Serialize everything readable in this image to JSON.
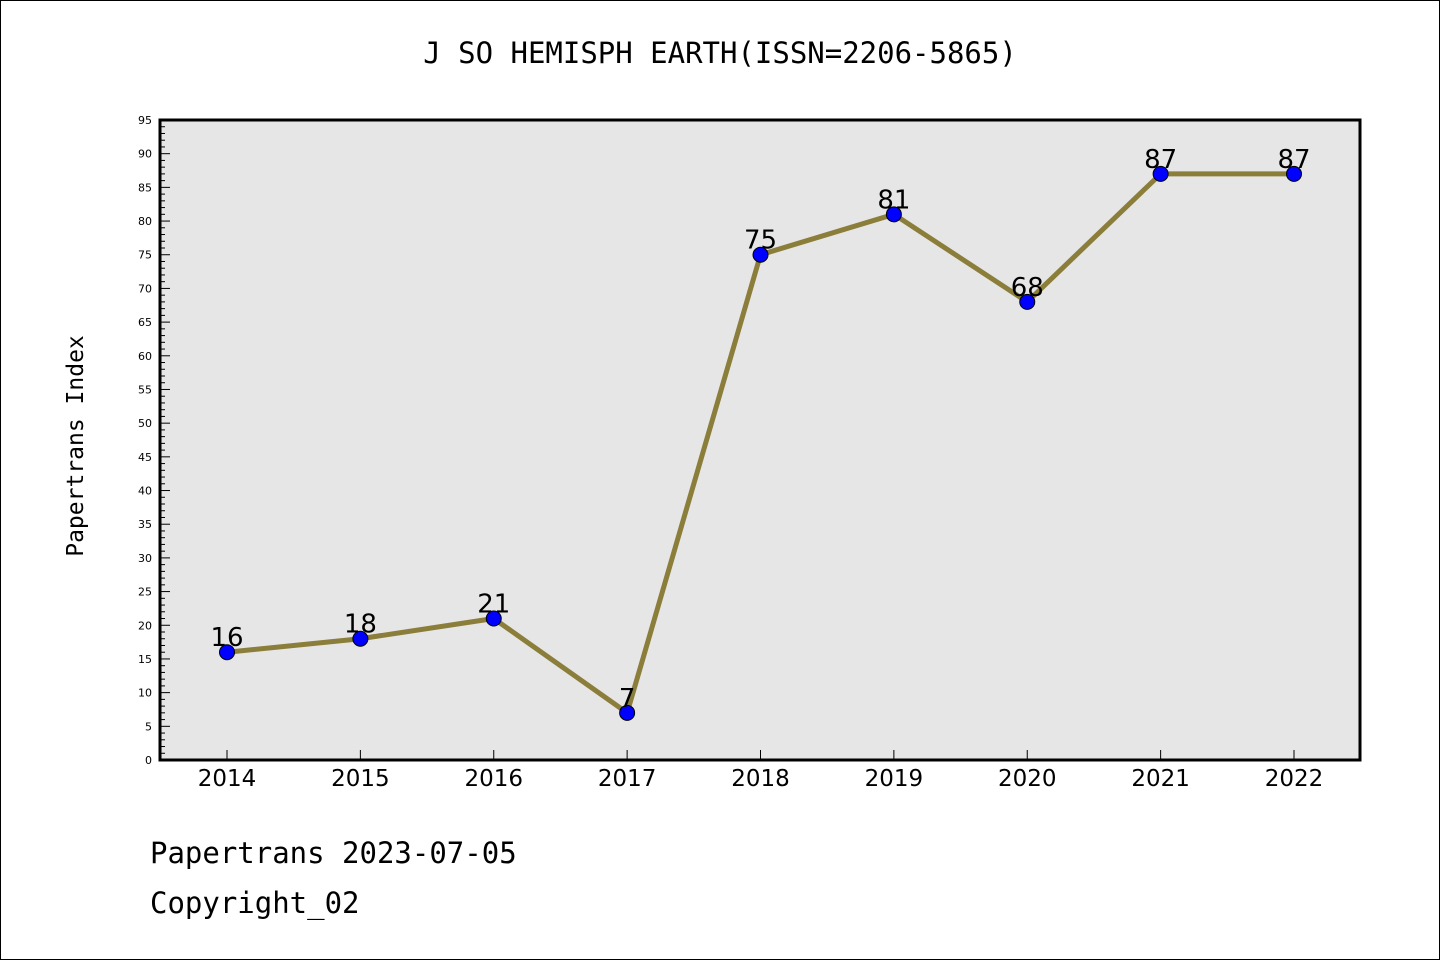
{
  "chart_data": {
    "type": "line",
    "title": "J SO HEMISPH EARTH(ISSN=2206-5865)",
    "xlabel": "",
    "ylabel": "Papertrans Index",
    "categories": [
      "2014",
      "2015",
      "2016",
      "2017",
      "2018",
      "2019",
      "2020",
      "2021",
      "2022"
    ],
    "series": [
      {
        "values": [
          16,
          18,
          21,
          7,
          75,
          81,
          68,
          87,
          87
        ],
        "line_color": "#8b7d3a",
        "marker_color": "#0000ff"
      }
    ],
    "ylim": [
      0,
      95
    ],
    "yticks": [
      0,
      5,
      10,
      15,
      20,
      25,
      30,
      35,
      40,
      45,
      50,
      55,
      60,
      65,
      70,
      75,
      80,
      85,
      90,
      95
    ],
    "plot_background": "#e6e6e6",
    "grid": false,
    "data_labels": true
  },
  "footer": {
    "date_line": "Papertrans 2023-07-05",
    "copyright_line": "Copyright_02"
  }
}
